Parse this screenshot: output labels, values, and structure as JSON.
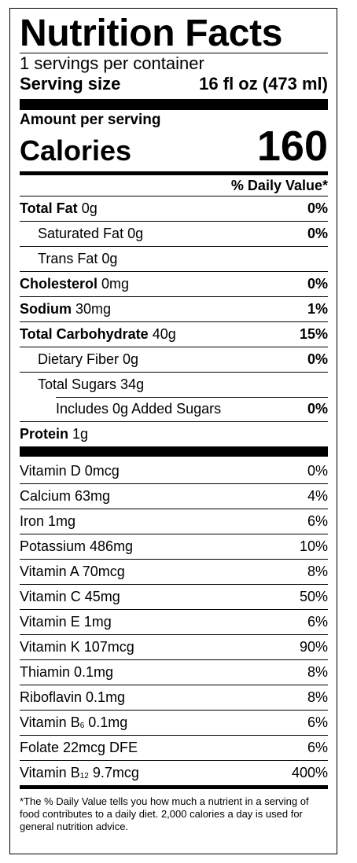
{
  "title": "Nutrition Facts",
  "servings_per_container": "1 servings per container",
  "serving_size_label": "Serving size",
  "serving_size_value": "16 fl oz (473 ml)",
  "amount_per_serving": "Amount per serving",
  "calories_label": "Calories",
  "calories_value": "160",
  "daily_value_header": "% Daily Value*",
  "nutrients": {
    "total_fat": {
      "label": "Total Fat",
      "amount": "0g",
      "dv": "0%"
    },
    "saturated_fat": {
      "label": "Saturated Fat 0g",
      "dv": "0%"
    },
    "trans_fat": {
      "label": "Trans Fat 0g"
    },
    "cholesterol": {
      "label": "Cholesterol",
      "amount": "0mg",
      "dv": "0%"
    },
    "sodium": {
      "label": "Sodium",
      "amount": "30mg",
      "dv": "1%"
    },
    "total_carbohydrate": {
      "label": "Total Carbohydrate",
      "amount": "40g",
      "dv": "15%"
    },
    "dietary_fiber": {
      "label": "Dietary Fiber 0g",
      "dv": "0%"
    },
    "total_sugars": {
      "label": "Total Sugars 34g"
    },
    "added_sugars": {
      "label": "Includes 0g Added Sugars",
      "dv": "0%"
    },
    "protein": {
      "label": "Protein",
      "amount": "1g"
    }
  },
  "vitamins": [
    {
      "label": "Vitamin D 0mcg",
      "dv": "0%"
    },
    {
      "label": "Calcium 63mg",
      "dv": "4%"
    },
    {
      "label": "Iron 1mg",
      "dv": "6%"
    },
    {
      "label": "Potassium 486mg",
      "dv": "10%"
    },
    {
      "label": "Vitamin A 70mcg",
      "dv": "8%"
    },
    {
      "label": "Vitamin C 45mg",
      "dv": "50%"
    },
    {
      "label": "Vitamin E 1mg",
      "dv": "6%"
    },
    {
      "label": "Vitamin K 107mcg",
      "dv": "90%"
    },
    {
      "label": "Thiamin 0.1mg",
      "dv": "8%"
    },
    {
      "label": "Riboflavin 0.1mg",
      "dv": "8%"
    },
    {
      "label_prefix": "Vitamin B",
      "label_sub": "6",
      "label_suffix": " 0.1mg",
      "dv": "6%"
    },
    {
      "label": "Folate 22mcg DFE",
      "dv": "6%"
    },
    {
      "label_prefix": "Vitamin B",
      "label_sub": "12",
      "label_suffix": " 9.7mcg",
      "dv": "400%"
    }
  ],
  "footnote": "*The % Daily Value tells you how much a nutrient in a serving of food contributes to a daily diet. 2,000 calories a day is used for general nutrition advice."
}
